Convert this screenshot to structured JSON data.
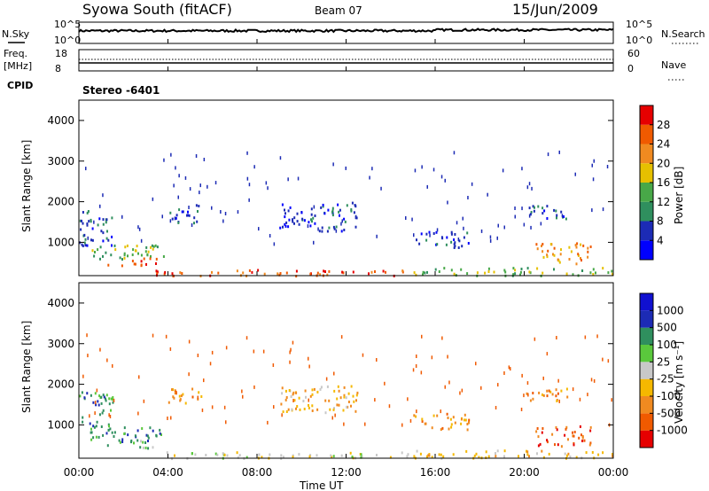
{
  "header": {
    "station": "Syowa South (fitACF)",
    "beam": "Beam 07",
    "date": "15/Jun/2009"
  },
  "panels": {
    "nsky": {
      "label": "N.Sky",
      "right_label": "N.Search",
      "left_ticks": [
        "10^5",
        "10^0"
      ],
      "right_ticks": [
        "10^5",
        "10^0"
      ]
    },
    "freq": {
      "label_line1": "Freq.",
      "label_line2": "[MHz]",
      "right_label": "Nave",
      "left_ticks": [
        "18",
        "8"
      ],
      "right_ticks": [
        "60",
        "0"
      ]
    },
    "cpid": {
      "label": "CPID",
      "value": "Stereo  -6401"
    }
  },
  "chart_data": [
    {
      "type": "heatmap",
      "title": "Power",
      "ylabel": "Slant Range [km]",
      "xlabel": "",
      "ylim": [
        180,
        4500
      ],
      "yticks": [
        "1000",
        "2000",
        "3000",
        "4000"
      ],
      "colorbar": {
        "label": "Power [dB]",
        "ticks": [
          "4",
          "8",
          "12",
          "16",
          "20",
          "24",
          "28"
        ],
        "colors": [
          "#0000ff",
          "#1c2bb5",
          "#2f8f5e",
          "#48a848",
          "#e6c000",
          "#f08a20",
          "#f05a00",
          "#e60000"
        ]
      },
      "echo_regions": [
        {
          "t0": 0.0,
          "t1": 1.5,
          "r0": 900,
          "r1": 1850,
          "level": 1
        },
        {
          "t0": 0.5,
          "t1": 3.8,
          "r0": 600,
          "r1": 1000,
          "level": 3
        },
        {
          "t0": 1.2,
          "t1": 3.5,
          "r0": 450,
          "r1": 650,
          "level": 6
        },
        {
          "t0": 4.0,
          "t1": 5.5,
          "r0": 1500,
          "r1": 1950,
          "level": 1
        },
        {
          "t0": 9.0,
          "t1": 12.5,
          "r0": 1300,
          "r1": 2000,
          "level": 1
        },
        {
          "t0": 3.0,
          "t1": 15.0,
          "r0": 200,
          "r1": 350,
          "level": 6
        },
        {
          "t0": 15.0,
          "t1": 17.5,
          "r0": 900,
          "r1": 1300,
          "level": 1
        },
        {
          "t0": 15.0,
          "t1": 24.0,
          "r0": 200,
          "r1": 400,
          "level": 3
        },
        {
          "t0": 20.0,
          "t1": 22.0,
          "r0": 1600,
          "r1": 1950,
          "level": 1
        },
        {
          "t0": 20.5,
          "t1": 23.0,
          "r0": 500,
          "r1": 1000,
          "level": 5
        }
      ]
    },
    {
      "type": "heatmap",
      "title": "Velocity",
      "ylabel": "Slant Range [km]",
      "xlabel": "Time UT",
      "ylim": [
        180,
        4500
      ],
      "yticks": [
        "1000",
        "2000",
        "3000",
        "4000"
      ],
      "xticks": [
        "00:00",
        "04:00",
        "08:00",
        "12:00",
        "16:00",
        "20:00",
        "00:00"
      ],
      "xlim": [
        0,
        24
      ],
      "colorbar": {
        "label": "Velocity [m s⁻¹]",
        "ticks": [
          "-1000",
          "-500",
          "-100",
          "-25",
          "25",
          "100",
          "500",
          "1000"
        ],
        "colors": [
          "#e60000",
          "#f05a00",
          "#f08a20",
          "#f5b800",
          "#c8c8c8",
          "#5ac83c",
          "#2f8f5e",
          "#1c2bb5",
          "#1010d0"
        ]
      },
      "echo_regions": [
        {
          "t0": 0.0,
          "t1": 1.5,
          "r0": 900,
          "r1": 1850,
          "level": 6
        },
        {
          "t0": 0.5,
          "t1": 3.8,
          "r0": 600,
          "r1": 1000,
          "level": 6
        },
        {
          "t0": 1.2,
          "t1": 3.5,
          "r0": 450,
          "r1": 650,
          "level": 5
        },
        {
          "t0": 4.0,
          "t1": 5.5,
          "r0": 1500,
          "r1": 1950,
          "level": 2
        },
        {
          "t0": 9.0,
          "t1": 12.5,
          "r0": 1300,
          "r1": 2000,
          "level": 3
        },
        {
          "t0": 3.0,
          "t1": 15.0,
          "r0": 200,
          "r1": 350,
          "level": 4
        },
        {
          "t0": 15.0,
          "t1": 17.5,
          "r0": 900,
          "r1": 1300,
          "level": 2
        },
        {
          "t0": 15.0,
          "t1": 24.0,
          "r0": 200,
          "r1": 400,
          "level": 3
        },
        {
          "t0": 20.0,
          "t1": 22.0,
          "r0": 1600,
          "r1": 1950,
          "level": 2
        },
        {
          "t0": 20.5,
          "t1": 23.0,
          "r0": 500,
          "r1": 1000,
          "level": 1
        }
      ]
    }
  ]
}
